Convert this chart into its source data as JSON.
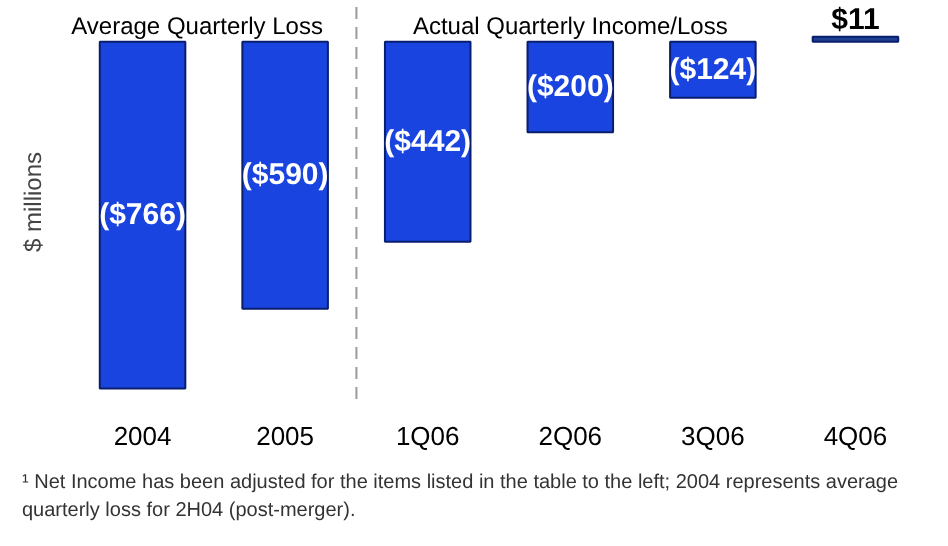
{
  "chart_data": {
    "type": "bar",
    "categories": [
      "2004",
      "2005",
      "1Q06",
      "2Q06",
      "3Q06",
      "4Q06"
    ],
    "values": [
      -766,
      -590,
      -442,
      -200,
      -124,
      11
    ],
    "colors": [
      "#1a44e0",
      "#1a44e0",
      "#1a44e0",
      "#1a44e0",
      "#1a44e0",
      "#1f3f8f"
    ],
    "value_labels": [
      "($766)",
      "($590)",
      "($442)",
      "($200)",
      "($124)",
      "$11"
    ],
    "ylabel": "$ millions",
    "annotations": [
      "Average Quarterly Loss",
      "Actual Quarterly Income/Loss",
      "¹ Net Income has been adjusted for the items listed in the table to the left; 2004 represents average quarterly loss for 2H04 (post-merger)."
    ],
    "grid": false
  }
}
